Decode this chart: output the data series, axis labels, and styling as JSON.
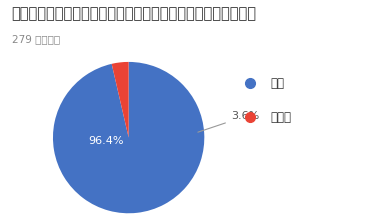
{
  "title": "社会人になったらパソコンを使う機会が増えると思いますか？",
  "subtitle": "279 件の回答",
  "slices": [
    96.4,
    3.6
  ],
  "labels": [
    "はい",
    "いいえ"
  ],
  "colors": [
    "#4472C4",
    "#EA4335"
  ],
  "autopct_labels": [
    "96.4%",
    "3.6%"
  ],
  "title_fontsize": 10.5,
  "subtitle_fontsize": 7.5,
  "legend_fontsize": 8.5,
  "autopct_fontsize": 8,
  "startangle": 90,
  "bg_color": "#ffffff",
  "title_color": "#333333",
  "subtitle_color": "#888888"
}
